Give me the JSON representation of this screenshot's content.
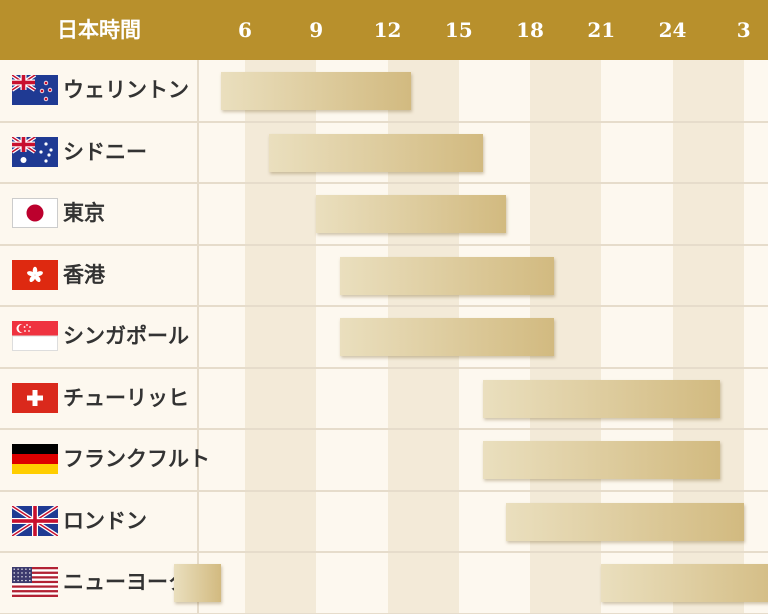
{
  "header": {
    "title": "日本時間"
  },
  "colors": {
    "header_bg": "#b8902c",
    "header_text": "#ffffff",
    "bar_start": "#eadfbe",
    "bar_end": "#d2ba80",
    "stripe": "#f3ead8",
    "background": "#fdf8ef"
  },
  "chart_data": {
    "type": "bar",
    "orientation": "horizontal-range",
    "title": "",
    "xlabel": "日本時間",
    "x_ticks": [
      "6",
      "9",
      "12",
      "15",
      "18",
      "21",
      "24",
      "3"
    ],
    "x_range": [
      6,
      27
    ],
    "grid": "alternating vertical bands",
    "legend": "none",
    "series": [
      {
        "name": "ウェリントン",
        "flag": "new-zealand-flag-icon",
        "ranges": [
          [
            5,
            13
          ]
        ]
      },
      {
        "name": "シドニー",
        "flag": "australia-flag-icon",
        "ranges": [
          [
            7,
            16
          ]
        ]
      },
      {
        "name": "東京",
        "flag": "japan-flag-icon",
        "ranges": [
          [
            9,
            17
          ]
        ]
      },
      {
        "name": "香港",
        "flag": "hong-kong-flag-icon",
        "ranges": [
          [
            10,
            19
          ]
        ]
      },
      {
        "name": "シンガポール",
        "flag": "singapore-flag-icon",
        "ranges": [
          [
            10,
            19
          ]
        ]
      },
      {
        "name": "チューリッヒ",
        "flag": "switzerland-flag-icon",
        "ranges": [
          [
            16,
            26
          ]
        ]
      },
      {
        "name": "フランクフルト",
        "flag": "germany-flag-icon",
        "ranges": [
          [
            16,
            26
          ]
        ]
      },
      {
        "name": "ロンドン",
        "flag": "united-kingdom-flag-icon",
        "ranges": [
          [
            17,
            27
          ]
        ]
      },
      {
        "name": "ニューヨーク",
        "flag": "united-states-flag-icon",
        "ranges": [
          [
            21,
            29
          ],
          [
            3,
            5
          ]
        ]
      }
    ]
  }
}
